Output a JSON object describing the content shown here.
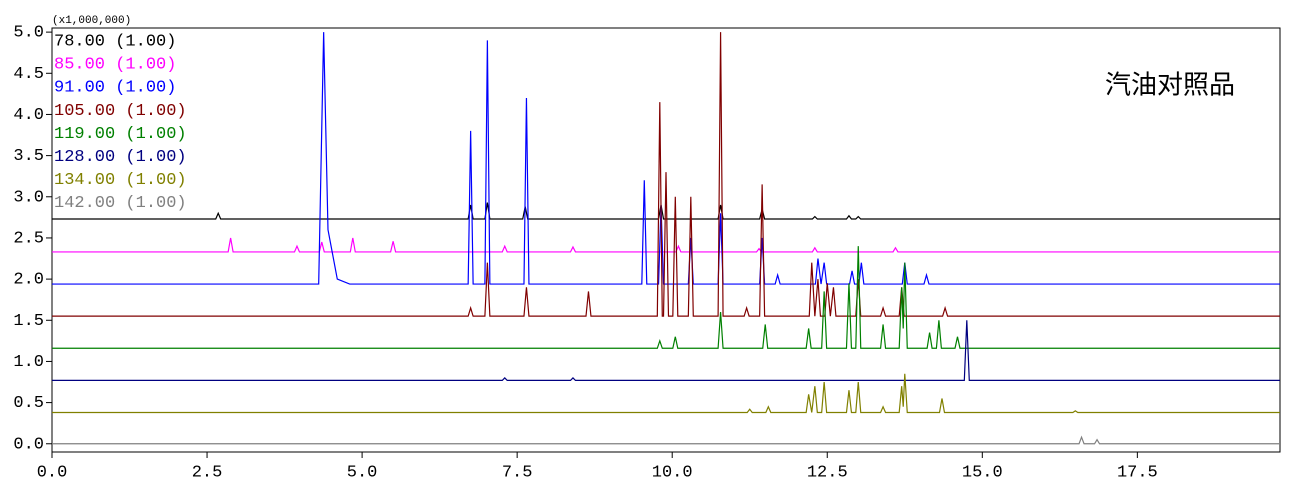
{
  "chart_data": {
    "type": "line",
    "annotation": "汽油对照品",
    "y_multiplier": "(x1,000,000)",
    "xlim": [
      0,
      19.8
    ],
    "ylim": [
      -0.1,
      5.05
    ],
    "xticks": [
      {
        "value": 0,
        "label": "0.0"
      },
      2.5,
      {
        "value": 5,
        "label": "5.0"
      },
      7.5,
      {
        "value": 10,
        "label": "10.0"
      },
      12.5,
      {
        "value": 15,
        "label": "15.0"
      },
      17.5
    ],
    "yticks": [
      {
        "value": 0,
        "label": "0.0"
      },
      0.5,
      {
        "value": 1,
        "label": "1.0"
      },
      1.5,
      {
        "value": 2,
        "label": "2.0"
      },
      2.5,
      {
        "value": 3,
        "label": "3.0"
      },
      3.5,
      {
        "value": 4,
        "label": "4.0"
      },
      4.5,
      {
        "value": 5,
        "label": "5.0"
      }
    ],
    "series": [
      {
        "name": "78.00 (1.00)",
        "color": "#000000",
        "x": [
          0,
          2.64,
          2.68,
          2.72,
          6.71,
          6.75,
          6.79,
          6.98,
          7.02,
          7.06,
          7.59,
          7.63,
          7.67,
          9.78,
          9.82,
          9.86,
          10.74,
          10.78,
          10.82,
          11.41,
          11.45,
          11.49,
          12.26,
          12.3,
          12.34,
          12.81,
          12.85,
          12.89,
          12.96,
          13.0,
          13.04,
          19.8
        ],
        "values": [
          2.73,
          2.73,
          2.8,
          2.73,
          2.73,
          2.9,
          2.73,
          2.73,
          2.93,
          2.73,
          2.73,
          2.88,
          2.73,
          2.73,
          2.9,
          2.73,
          2.73,
          2.9,
          2.73,
          2.73,
          2.85,
          2.73,
          2.73,
          2.76,
          2.73,
          2.73,
          2.77,
          2.73,
          2.73,
          2.76,
          2.73,
          2.73
        ]
      },
      {
        "name": "85.00 (1.00)",
        "color": "#ff00ff",
        "x": [
          0,
          2.84,
          2.88,
          2.92,
          3.91,
          3.95,
          3.99,
          4.31,
          4.35,
          4.39,
          4.81,
          4.85,
          4.89,
          5.46,
          5.5,
          5.54,
          7.26,
          7.3,
          7.34,
          8.36,
          8.4,
          8.44,
          10.06,
          10.1,
          10.14,
          11.36,
          11.4,
          11.44,
          12.26,
          12.3,
          12.34,
          13.56,
          13.6,
          13.64,
          19.8
        ],
        "values": [
          2.33,
          2.33,
          2.5,
          2.33,
          2.33,
          2.4,
          2.33,
          2.33,
          2.45,
          2.33,
          2.33,
          2.5,
          2.33,
          2.33,
          2.46,
          2.33,
          2.33,
          2.4,
          2.33,
          2.33,
          2.39,
          2.33,
          2.33,
          2.4,
          2.33,
          2.33,
          2.37,
          2.33,
          2.33,
          2.38,
          2.33,
          2.33,
          2.38,
          2.33,
          2.33
        ]
      },
      {
        "name": "91.00 (1.00)",
        "color": "#0000ff",
        "x": [
          0,
          4.3,
          4.38,
          4.45,
          4.6,
          4.8,
          6.71,
          6.75,
          6.79,
          6.98,
          7.02,
          7.06,
          7.61,
          7.65,
          7.69,
          9.51,
          9.55,
          9.59,
          9.78,
          9.82,
          9.86,
          10.26,
          10.3,
          10.34,
          10.74,
          10.78,
          10.82,
          11.41,
          11.45,
          11.49,
          11.66,
          11.7,
          11.74,
          12.31,
          12.35,
          12.4,
          12.45,
          12.49,
          12.86,
          12.9,
          12.94,
          13.01,
          13.05,
          13.09,
          13.71,
          13.75,
          13.79,
          14.06,
          14.1,
          14.14,
          19.8
        ],
        "values": [
          1.94,
          1.94,
          5.0,
          2.6,
          2.0,
          1.94,
          1.94,
          3.8,
          1.94,
          1.94,
          4.9,
          1.94,
          1.94,
          4.2,
          1.94,
          1.94,
          3.2,
          1.94,
          1.94,
          2.9,
          1.94,
          1.94,
          2.5,
          1.94,
          1.94,
          2.8,
          1.94,
          1.94,
          2.5,
          1.94,
          1.94,
          2.05,
          1.94,
          1.94,
          2.25,
          1.94,
          2.2,
          1.94,
          1.94,
          2.1,
          1.94,
          1.94,
          2.2,
          1.94,
          1.94,
          2.2,
          1.94,
          1.94,
          2.05,
          1.94,
          1.94
        ]
      },
      {
        "name": "105.00 (1.00)",
        "color": "#800000",
        "x": [
          0,
          6.71,
          6.75,
          6.79,
          6.98,
          7.02,
          7.06,
          7.61,
          7.65,
          7.69,
          8.61,
          8.65,
          8.69,
          9.76,
          9.8,
          9.84,
          9.86,
          9.9,
          9.94,
          10.01,
          10.05,
          10.09,
          10.26,
          10.3,
          10.34,
          10.74,
          10.78,
          10.82,
          11.16,
          11.2,
          11.24,
          11.41,
          11.45,
          11.49,
          12.21,
          12.25,
          12.3,
          12.35,
          12.39,
          12.46,
          12.5,
          12.55,
          12.6,
          12.64,
          12.96,
          13.0,
          13.04,
          13.36,
          13.4,
          13.44,
          13.66,
          13.7,
          13.74,
          14.36,
          14.4,
          14.44,
          19.8
        ],
        "values": [
          1.55,
          1.55,
          1.65,
          1.55,
          1.55,
          2.2,
          1.55,
          1.55,
          1.9,
          1.55,
          1.55,
          1.85,
          1.55,
          1.55,
          4.15,
          1.55,
          1.55,
          3.3,
          1.55,
          1.55,
          3.0,
          1.55,
          1.55,
          3.0,
          1.55,
          1.55,
          5.0,
          1.55,
          1.55,
          1.65,
          1.55,
          1.55,
          3.15,
          1.55,
          1.55,
          2.2,
          1.55,
          2.0,
          1.55,
          1.55,
          1.95,
          1.55,
          1.9,
          1.55,
          1.55,
          2.0,
          1.55,
          1.55,
          1.65,
          1.55,
          1.55,
          1.9,
          1.55,
          1.55,
          1.65,
          1.55,
          1.55
        ]
      },
      {
        "name": "119.00 (1.00)",
        "color": "#008000",
        "x": [
          0,
          9.76,
          9.8,
          9.84,
          10.01,
          10.05,
          10.09,
          10.74,
          10.78,
          10.82,
          11.46,
          11.5,
          11.54,
          12.16,
          12.2,
          12.24,
          12.41,
          12.45,
          12.49,
          12.81,
          12.85,
          12.89,
          12.96,
          13.0,
          13.04,
          13.36,
          13.4,
          13.44,
          13.66,
          13.7,
          13.725,
          13.75,
          13.79,
          14.11,
          14.15,
          14.19,
          14.26,
          14.3,
          14.34,
          14.56,
          14.6,
          14.64,
          19.8
        ],
        "values": [
          1.16,
          1.16,
          1.25,
          1.16,
          1.16,
          1.3,
          1.16,
          1.16,
          1.6,
          1.16,
          1.16,
          1.45,
          1.16,
          1.16,
          1.4,
          1.16,
          1.16,
          1.85,
          1.16,
          1.16,
          1.95,
          1.16,
          1.16,
          2.4,
          1.16,
          1.16,
          1.45,
          1.16,
          1.16,
          1.9,
          1.4,
          2.2,
          1.16,
          1.16,
          1.35,
          1.16,
          1.16,
          1.5,
          1.16,
          1.16,
          1.3,
          1.16,
          1.16
        ]
      },
      {
        "name": "128.00 (1.00)",
        "color": "#000080",
        "x": [
          0,
          7.26,
          7.3,
          7.34,
          8.36,
          8.4,
          8.44,
          14.71,
          14.75,
          14.79,
          19.8
        ],
        "values": [
          0.77,
          0.77,
          0.8,
          0.77,
          0.77,
          0.8,
          0.77,
          0.77,
          1.5,
          0.77,
          0.77
        ]
      },
      {
        "name": "134.00 (1.00)",
        "color": "#808000",
        "x": [
          0,
          11.21,
          11.25,
          11.29,
          11.51,
          11.55,
          11.59,
          12.16,
          12.2,
          12.25,
          12.3,
          12.34,
          12.41,
          12.45,
          12.49,
          12.81,
          12.85,
          12.89,
          12.96,
          13.0,
          13.04,
          13.36,
          13.4,
          13.44,
          13.66,
          13.7,
          13.725,
          13.75,
          13.79,
          14.31,
          14.35,
          14.39,
          16.46,
          16.5,
          16.54,
          19.8
        ],
        "values": [
          0.38,
          0.38,
          0.42,
          0.38,
          0.38,
          0.45,
          0.38,
          0.38,
          0.6,
          0.38,
          0.7,
          0.38,
          0.38,
          0.75,
          0.38,
          0.38,
          0.65,
          0.38,
          0.38,
          0.75,
          0.38,
          0.38,
          0.45,
          0.38,
          0.38,
          0.7,
          0.45,
          0.85,
          0.38,
          0.38,
          0.55,
          0.38,
          0.38,
          0.4,
          0.38,
          0.38
        ]
      },
      {
        "name": "142.00 (1.00)",
        "color": "#808080",
        "x": [
          0,
          16.56,
          16.6,
          16.64,
          16.81,
          16.85,
          16.89,
          19.8
        ],
        "values": [
          0,
          0,
          0.08,
          0,
          0,
          0.05,
          0,
          0
        ]
      }
    ]
  }
}
